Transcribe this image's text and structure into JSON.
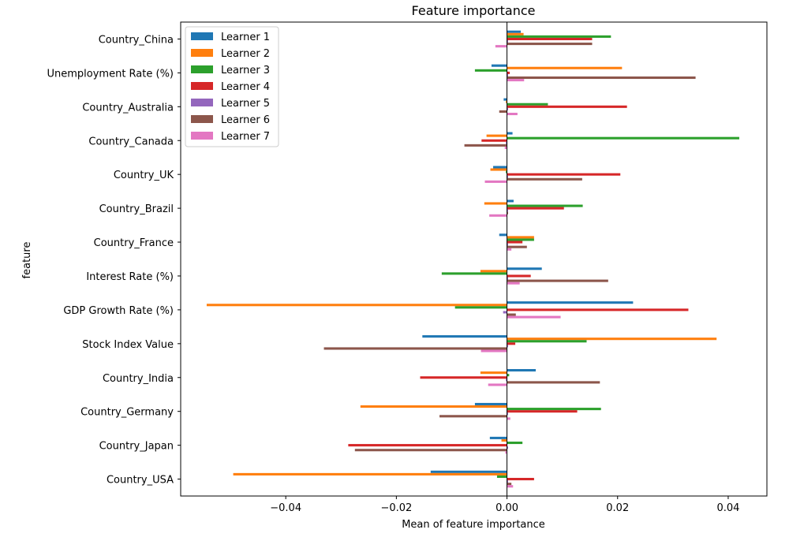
{
  "chart_data": {
    "type": "bar",
    "orientation": "horizontal",
    "title": "Feature importance",
    "xlabel": "Mean of feature importance",
    "ylabel": "feature",
    "xlim": [
      -0.059,
      0.047
    ],
    "xticks": [
      -0.04,
      -0.02,
      0.0,
      0.02,
      0.04
    ],
    "xtick_labels": [
      "−0.04",
      "−0.02",
      "0.00",
      "0.02",
      "0.04"
    ],
    "grid": false,
    "legend": "top-left",
    "categories": [
      "Country_China",
      "Unemployment Rate (%)",
      "Country_Australia",
      "Country_Canada",
      "Country_UK",
      "Country_Brazil",
      "Country_France",
      "Interest Rate (%)",
      "GDP Growth Rate (%)",
      "Stock Index Value",
      "Country_India",
      "Country_Germany",
      "Country_Japan",
      "Country_USA"
    ],
    "series": [
      {
        "name": "Learner 1",
        "color": "#1f77b4",
        "values": [
          0.0025,
          -0.0028,
          -0.0006,
          0.001,
          -0.0025,
          0.0012,
          -0.0014,
          0.0063,
          0.0228,
          -0.0153,
          0.0052,
          -0.0058,
          -0.0031,
          -0.0138
        ]
      },
      {
        "name": "Learner 2",
        "color": "#ff7f0e",
        "values": [
          0.003,
          0.0208,
          -0.0002,
          -0.0037,
          -0.003,
          -0.0041,
          0.0049,
          -0.0048,
          -0.0543,
          0.0379,
          -0.0048,
          -0.0265,
          -0.001,
          -0.0495
        ]
      },
      {
        "name": "Learner 3",
        "color": "#2ca02c",
        "values": [
          0.0188,
          -0.0058,
          0.0074,
          0.042,
          -0.0002,
          0.0137,
          0.0049,
          -0.0118,
          -0.0094,
          0.0144,
          0.0004,
          0.017,
          0.0028,
          -0.0018
        ]
      },
      {
        "name": "Learner 4",
        "color": "#d62728",
        "values": [
          0.0154,
          0.0005,
          0.0217,
          -0.0046,
          0.0205,
          0.0103,
          0.0028,
          0.0043,
          0.0328,
          0.0015,
          -0.0157,
          0.0127,
          -0.0287,
          0.0049
        ]
      },
      {
        "name": "Learner 5",
        "color": "#9467bd",
        "values": [
          0.0002,
          0.0002,
          0.0002,
          -0.0002,
          0.0002,
          0.0002,
          0.0002,
          0.0002,
          -0.0007,
          0.0002,
          -0.0002,
          0.0002,
          0.0002,
          0.0002
        ]
      },
      {
        "name": "Learner 6",
        "color": "#8c564b",
        "values": [
          0.0154,
          0.0341,
          -0.0014,
          -0.0077,
          0.0136,
          0.0002,
          0.0036,
          0.0183,
          0.0016,
          -0.0331,
          0.0168,
          -0.0122,
          -0.0275,
          0.0008
        ]
      },
      {
        "name": "Learner 7",
        "color": "#e377c2",
        "values": [
          -0.0021,
          0.0031,
          0.0019,
          -0.0004,
          -0.004,
          -0.0032,
          0.0008,
          0.0023,
          0.0097,
          -0.0047,
          -0.0034,
          0.0006,
          -0.0003,
          0.0011
        ]
      }
    ]
  }
}
